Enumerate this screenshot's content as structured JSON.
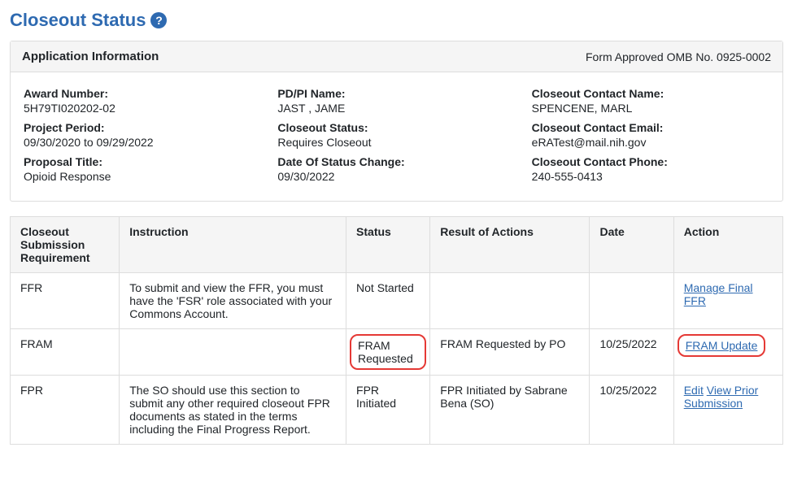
{
  "page": {
    "title": "Closeout Status"
  },
  "panel": {
    "header_left": "Application Information",
    "header_right": "Form Approved OMB No. 0925-0002"
  },
  "info": {
    "col1": {
      "award_number_label": "Award Number:",
      "award_number_value": "5H79TI020202-02",
      "project_period_label": "Project Period:",
      "project_period_value": "09/30/2020 to 09/29/2022",
      "proposal_title_label": "Proposal Title:",
      "proposal_title_value": "Opioid Response"
    },
    "col2": {
      "pdpi_label": "PD/PI Name:",
      "pdpi_value": "JAST , JAME",
      "closeout_status_label": "Closeout Status:",
      "closeout_status_value": "Requires Closeout",
      "date_change_label": "Date Of Status Change:",
      "date_change_value": "09/30/2022"
    },
    "col3": {
      "contact_name_label": "Closeout Contact Name:",
      "contact_name_value": "SPENCENE, MARL",
      "contact_email_label": "Closeout Contact Email:",
      "contact_email_value": "eRATest@mail.nih.gov",
      "contact_phone_label": "Closeout Contact Phone:",
      "contact_phone_value": "240-555-0413"
    }
  },
  "table": {
    "headers": {
      "req": "Closeout Submission Requirement",
      "instr": "Instruction",
      "status": "Status",
      "result": "Result of Actions",
      "date": "Date",
      "action": "Action"
    },
    "rows": {
      "ffr": {
        "req": "FFR",
        "instr": "To submit and view the FFR, you must have the 'FSR' role associated with your Commons Account.",
        "status": "Not Started",
        "result": "",
        "date": "",
        "action_link": "Manage Final FFR"
      },
      "fram": {
        "req": "FRAM",
        "instr": "",
        "status": "FRAM Requested",
        "result": "FRAM Requested by PO",
        "date": "10/25/2022",
        "action_link": "FRAM Update"
      },
      "fpr": {
        "req": "FPR",
        "instr": "The SO should use this section to submit any other required closeout FPR documents as stated in the terms including the Final Progress Report.",
        "status": "FPR Initiated",
        "result": "FPR Initiated by Sabrane Bena   (SO)",
        "date": "10/25/2022",
        "action_link1": "Edit",
        "action_link2": "View Prior Submission"
      }
    }
  },
  "annotation": {
    "color": "#e53935"
  }
}
